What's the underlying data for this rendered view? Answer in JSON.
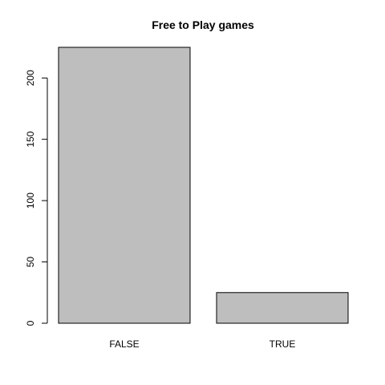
{
  "chart_data": {
    "type": "bar",
    "title": "Free to Play games",
    "categories": [
      "FALSE",
      "TRUE"
    ],
    "values": [
      225,
      25
    ],
    "xlabel": "",
    "ylabel": "",
    "ylim": [
      0,
      225
    ],
    "yticks": [
      0,
      50,
      100,
      150,
      200
    ],
    "bar_color": "#bebebe",
    "grid": false
  }
}
